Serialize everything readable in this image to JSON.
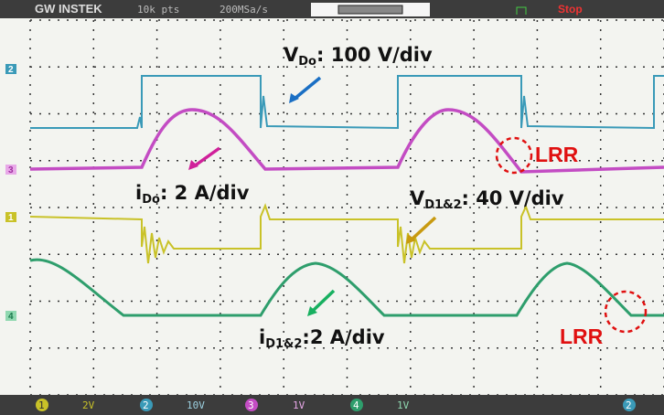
{
  "header": {
    "brand": "GW INSTEK",
    "points": "10k pts",
    "sample_rate": "200MSa/s",
    "status": "Stop"
  },
  "channel_markers": [
    "2",
    "3",
    "1",
    "4"
  ],
  "annotations": [
    {
      "symbol": "V",
      "subscript": "Do",
      "text": ": 100 V/div"
    },
    {
      "symbol": "i",
      "subscript": "Do",
      "text": ": 2 A/div"
    },
    {
      "symbol": "V",
      "subscript": "D1&2",
      "text": ": 40 V/div"
    },
    {
      "symbol": "i",
      "subscript": "D1&2",
      "text": ":2 A/div"
    }
  ],
  "lrr_labels": [
    "LRR",
    "LRR"
  ],
  "footer": [
    {
      "channel": "1",
      "scale": "2V"
    },
    {
      "channel": "2",
      "scale": "10V"
    },
    {
      "channel": "3",
      "scale": "1V"
    },
    {
      "channel": "4",
      "scale": "1V"
    }
  ],
  "footer_right": "2"
}
